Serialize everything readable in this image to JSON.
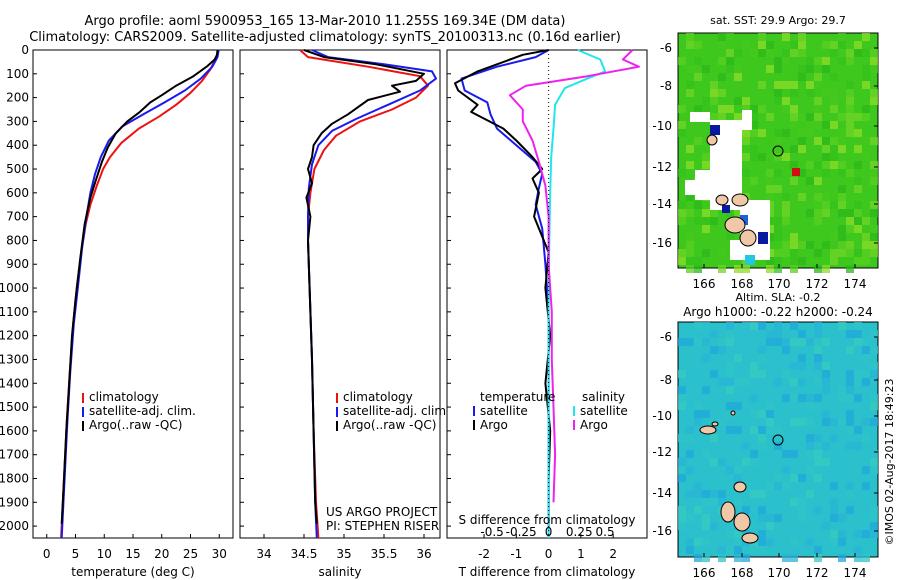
{
  "header": {
    "line1": "Argo profile: aoml 5900953_165 13-Mar-2010 11.255S 169.34E (DM data)",
    "line2": "Climatology: CARS2009. Satellite-adjusted climatology: synTS_20100313.nc (0.16d earlier)"
  },
  "colors": {
    "clim": "#ee1111",
    "sat": "#1a1aee",
    "argo": "#000000",
    "sal_sat": "#22e5ee",
    "sal_argo": "#ee22ee"
  },
  "chart_data": [
    {
      "id": "temperature",
      "type": "line",
      "xlabel": "temperature (deg C)",
      "ylabel": "",
      "xlim": [
        -1,
        31
      ],
      "ylim": [
        2050,
        0
      ],
      "xticks": [
        0,
        5,
        10,
        15,
        20,
        25,
        30
      ],
      "yticks": [
        0,
        100,
        200,
        300,
        400,
        500,
        600,
        700,
        800,
        900,
        1000,
        1100,
        1200,
        1300,
        1400,
        1500,
        1600,
        1700,
        1800,
        1900,
        2000
      ],
      "legend": [
        "climatology",
        "satellite-adj. clim.",
        "Argo(..raw -QC)"
      ],
      "series": [
        {
          "name": "climatology",
          "color_key": "clim",
          "points": [
            [
              29.8,
              0
            ],
            [
              29.5,
              30
            ],
            [
              28.5,
              80
            ],
            [
              27,
              130
            ],
            [
              25,
              180
            ],
            [
              22.5,
              230
            ],
            [
              19.5,
              280
            ],
            [
              16,
              330
            ],
            [
              13,
              390
            ],
            [
              11,
              450
            ],
            [
              9.8,
              500
            ],
            [
              8.7,
              570
            ],
            [
              7.6,
              650
            ],
            [
              6.8,
              730
            ],
            [
              6,
              850
            ],
            [
              5.2,
              1000
            ],
            [
              4.6,
              1150
            ],
            [
              4,
              1350
            ],
            [
              3.5,
              1550
            ],
            [
              3,
              1800
            ],
            [
              2.5,
              2050
            ]
          ]
        },
        {
          "name": "satellite-adj. clim.",
          "color_key": "sat",
          "points": [
            [
              29.9,
              0
            ],
            [
              29.7,
              30
            ],
            [
              28.8,
              70
            ],
            [
              26.8,
              120
            ],
            [
              24,
              170
            ],
            [
              20.5,
              220
            ],
            [
              16.8,
              270
            ],
            [
              13.2,
              320
            ],
            [
              10.8,
              380
            ],
            [
              9.4,
              450
            ],
            [
              8.4,
              520
            ],
            [
              7.6,
              600
            ],
            [
              6.9,
              700
            ],
            [
              6.2,
              820
            ],
            [
              5.4,
              1000
            ],
            [
              4.7,
              1150
            ],
            [
              4.1,
              1350
            ],
            [
              3.6,
              1550
            ],
            [
              3.1,
              1800
            ],
            [
              2.6,
              2050
            ]
          ]
        },
        {
          "name": "Argo(..raw -QC)",
          "color_key": "argo",
          "points": [
            [
              29.7,
              0
            ],
            [
              29.6,
              20
            ],
            [
              29.2,
              40
            ],
            [
              27.8,
              70
            ],
            [
              25.5,
              110
            ],
            [
              22.5,
              150
            ],
            [
              20,
              190
            ],
            [
              18,
              220
            ],
            [
              16.2,
              260
            ],
            [
              14,
              300
            ],
            [
              12,
              350
            ],
            [
              10.6,
              410
            ],
            [
              9.6,
              470
            ],
            [
              8.5,
              550
            ],
            [
              7.6,
              620
            ],
            [
              6.6,
              730
            ],
            [
              5.8,
              880
            ],
            [
              5,
              1050
            ],
            [
              4.4,
              1200
            ],
            [
              3.9,
              1400
            ],
            [
              3.4,
              1600
            ],
            [
              3,
              1800
            ],
            [
              2.6,
              1990
            ]
          ]
        }
      ]
    },
    {
      "id": "salinity",
      "type": "line",
      "xlabel": "salinity",
      "ylabel": "",
      "xlim": [
        33.8,
        36.1
      ],
      "ylim": [
        2050,
        0
      ],
      "xticks": [
        34,
        34.5,
        35,
        35.5,
        36
      ],
      "legend": [
        "climatology",
        "satellite-adj. clim.",
        "Argo(..raw -QC)"
      ],
      "annotations": [
        "US ARGO PROJECT",
        "PI: STEPHEN RISER"
      ],
      "series": [
        {
          "name": "climatology",
          "color_key": "clim",
          "points": [
            [
              34.45,
              0
            ],
            [
              34.55,
              30
            ],
            [
              35.3,
              70
            ],
            [
              35.95,
              110
            ],
            [
              36.05,
              150
            ],
            [
              35.9,
              200
            ],
            [
              35.6,
              250
            ],
            [
              35.2,
              300
            ],
            [
              34.9,
              360
            ],
            [
              34.75,
              420
            ],
            [
              34.63,
              500
            ],
            [
              34.58,
              600
            ],
            [
              34.55,
              700
            ],
            [
              34.55,
              800
            ],
            [
              34.57,
              1000
            ],
            [
              34.6,
              1300
            ],
            [
              34.62,
              1600
            ],
            [
              34.65,
              1900
            ],
            [
              34.68,
              2050
            ]
          ]
        },
        {
          "name": "satellite-adj. clim.",
          "color_key": "sat",
          "points": [
            [
              34.6,
              0
            ],
            [
              34.8,
              30
            ],
            [
              35.5,
              60
            ],
            [
              36.1,
              90
            ],
            [
              36.15,
              120
            ],
            [
              35.95,
              170
            ],
            [
              35.55,
              230
            ],
            [
              35.15,
              290
            ],
            [
              34.85,
              340
            ],
            [
              34.68,
              400
            ],
            [
              34.6,
              480
            ],
            [
              34.56,
              580
            ],
            [
              34.55,
              700
            ],
            [
              34.55,
              800
            ],
            [
              34.57,
              1000
            ],
            [
              34.6,
              1300
            ],
            [
              34.62,
              1600
            ],
            [
              34.64,
              1900
            ],
            [
              34.66,
              2050
            ]
          ]
        },
        {
          "name": "Argo(..raw -QC)",
          "color_key": "argo",
          "points": [
            [
              34.5,
              0
            ],
            [
              34.75,
              30
            ],
            [
              35.4,
              60
            ],
            [
              36.0,
              100
            ],
            [
              35.9,
              130
            ],
            [
              35.6,
              150
            ],
            [
              35.7,
              175
            ],
            [
              35.3,
              210
            ],
            [
              35.05,
              270
            ],
            [
              34.85,
              310
            ],
            [
              34.72,
              350
            ],
            [
              34.62,
              400
            ],
            [
              34.6,
              450
            ],
            [
              34.55,
              500
            ],
            [
              34.6,
              560
            ],
            [
              34.53,
              620
            ],
            [
              34.58,
              700
            ],
            [
              34.55,
              800
            ],
            [
              34.57,
              1000
            ],
            [
              34.6,
              1300
            ],
            [
              34.62,
              1600
            ],
            [
              34.64,
              1900
            ],
            [
              34.66,
              1990
            ]
          ]
        }
      ]
    },
    {
      "id": "differences",
      "type": "line",
      "xlabel": "T difference from climatology",
      "xlabel_top": "S difference from climatology",
      "xlim": [
        -2.9,
        2.8
      ],
      "ylim": [
        2050,
        0
      ],
      "xticks": [
        -2,
        -1,
        0,
        1,
        2
      ],
      "xticks_s": [
        "-0.5",
        "-0.25",
        "0",
        "0.25",
        "0.5"
      ],
      "legend_t_title": "temperature",
      "legend_s_title": "salinity",
      "legend": [
        "satellite",
        "Argo",
        "satellite",
        "Argo"
      ],
      "series": [
        {
          "name": "T satellite",
          "color_key": "sat",
          "points": [
            [
              0,
              0
            ],
            [
              -0.4,
              30
            ],
            [
              -1.6,
              70
            ],
            [
              -2.7,
              120
            ],
            [
              -2.6,
              170
            ],
            [
              -1.9,
              220
            ],
            [
              -1.8,
              270
            ],
            [
              -1.6,
              330
            ],
            [
              -1.0,
              400
            ],
            [
              -0.4,
              470
            ],
            [
              -0.2,
              520
            ],
            [
              -0.3,
              580
            ],
            [
              -0.4,
              650
            ],
            [
              -0.2,
              750
            ],
            [
              -0.1,
              900
            ],
            [
              0,
              1100
            ],
            [
              0,
              1400
            ],
            [
              0,
              1700
            ],
            [
              0,
              2050
            ]
          ]
        },
        {
          "name": "T Argo",
          "color_key": "argo",
          "points": [
            [
              0,
              0
            ],
            [
              -0.8,
              20
            ],
            [
              -1.6,
              60
            ],
            [
              -2.2,
              90
            ],
            [
              -2.9,
              140
            ],
            [
              -2.8,
              170
            ],
            [
              -2.2,
              230
            ],
            [
              -2.4,
              260
            ],
            [
              -1.4,
              330
            ],
            [
              -1.0,
              380
            ],
            [
              -0.5,
              450
            ],
            [
              -0.2,
              500
            ],
            [
              -0.5,
              540
            ],
            [
              -0.3,
              600
            ],
            [
              -0.45,
              700
            ],
            [
              0,
              850
            ],
            [
              -0.1,
              1000
            ],
            [
              0.05,
              1200
            ],
            [
              -0.1,
              1400
            ],
            [
              0.05,
              1600
            ],
            [
              0,
              1800
            ],
            [
              0,
              2000
            ]
          ]
        },
        {
          "name": "S satellite",
          "color_key": "sal_sat",
          "points": [
            [
              0.9,
              0
            ],
            [
              1.6,
              40
            ],
            [
              1.75,
              90
            ],
            [
              1.2,
              120
            ],
            [
              0.5,
              160
            ],
            [
              0.2,
              230
            ],
            [
              0.15,
              330
            ],
            [
              0.08,
              450
            ],
            [
              0.05,
              600
            ],
            [
              0.02,
              800
            ],
            [
              0,
              1100
            ],
            [
              0,
              1500
            ],
            [
              0,
              2050
            ]
          ]
        },
        {
          "name": "S Argo",
          "color_key": "sal_argo",
          "points": [
            [
              2.6,
              0
            ],
            [
              2.3,
              40
            ],
            [
              2.8,
              70
            ],
            [
              1.2,
              110
            ],
            [
              -0.7,
              150
            ],
            [
              -1.2,
              190
            ],
            [
              -0.8,
              250
            ],
            [
              -0.8,
              300
            ],
            [
              -0.5,
              380
            ],
            [
              -0.3,
              470
            ],
            [
              -0.1,
              570
            ],
            [
              0,
              700
            ],
            [
              0,
              900
            ],
            [
              0.1,
              1100
            ],
            [
              0.1,
              1300
            ],
            [
              0.15,
              1500
            ],
            [
              0.2,
              1700
            ],
            [
              0.15,
              1900
            ]
          ]
        }
      ]
    }
  ],
  "maps": [
    {
      "id": "sst-map",
      "title": "sat. SST: 29.9 Argo: 29.7",
      "xticks": [
        "166",
        "168",
        "170",
        "172",
        "174"
      ],
      "yticks": [
        "-6",
        "-8",
        "-10",
        "-12",
        "-14",
        "-16"
      ],
      "base_color": "#3ec81e"
    },
    {
      "id": "sla-map",
      "title_line1": "Altim. SLA: -0.2",
      "title_line2": "Argo h1000: -0.22 h2000: -0.24",
      "xticks": [
        "166",
        "168",
        "170",
        "172",
        "174"
      ],
      "yticks": [
        "-6",
        "-8",
        "-10",
        "-12",
        "-14",
        "-16"
      ],
      "base_color": "#2ac0cc"
    }
  ],
  "footer": {
    "credit": "©IMOS 02-Aug-2017 18:49:23"
  }
}
